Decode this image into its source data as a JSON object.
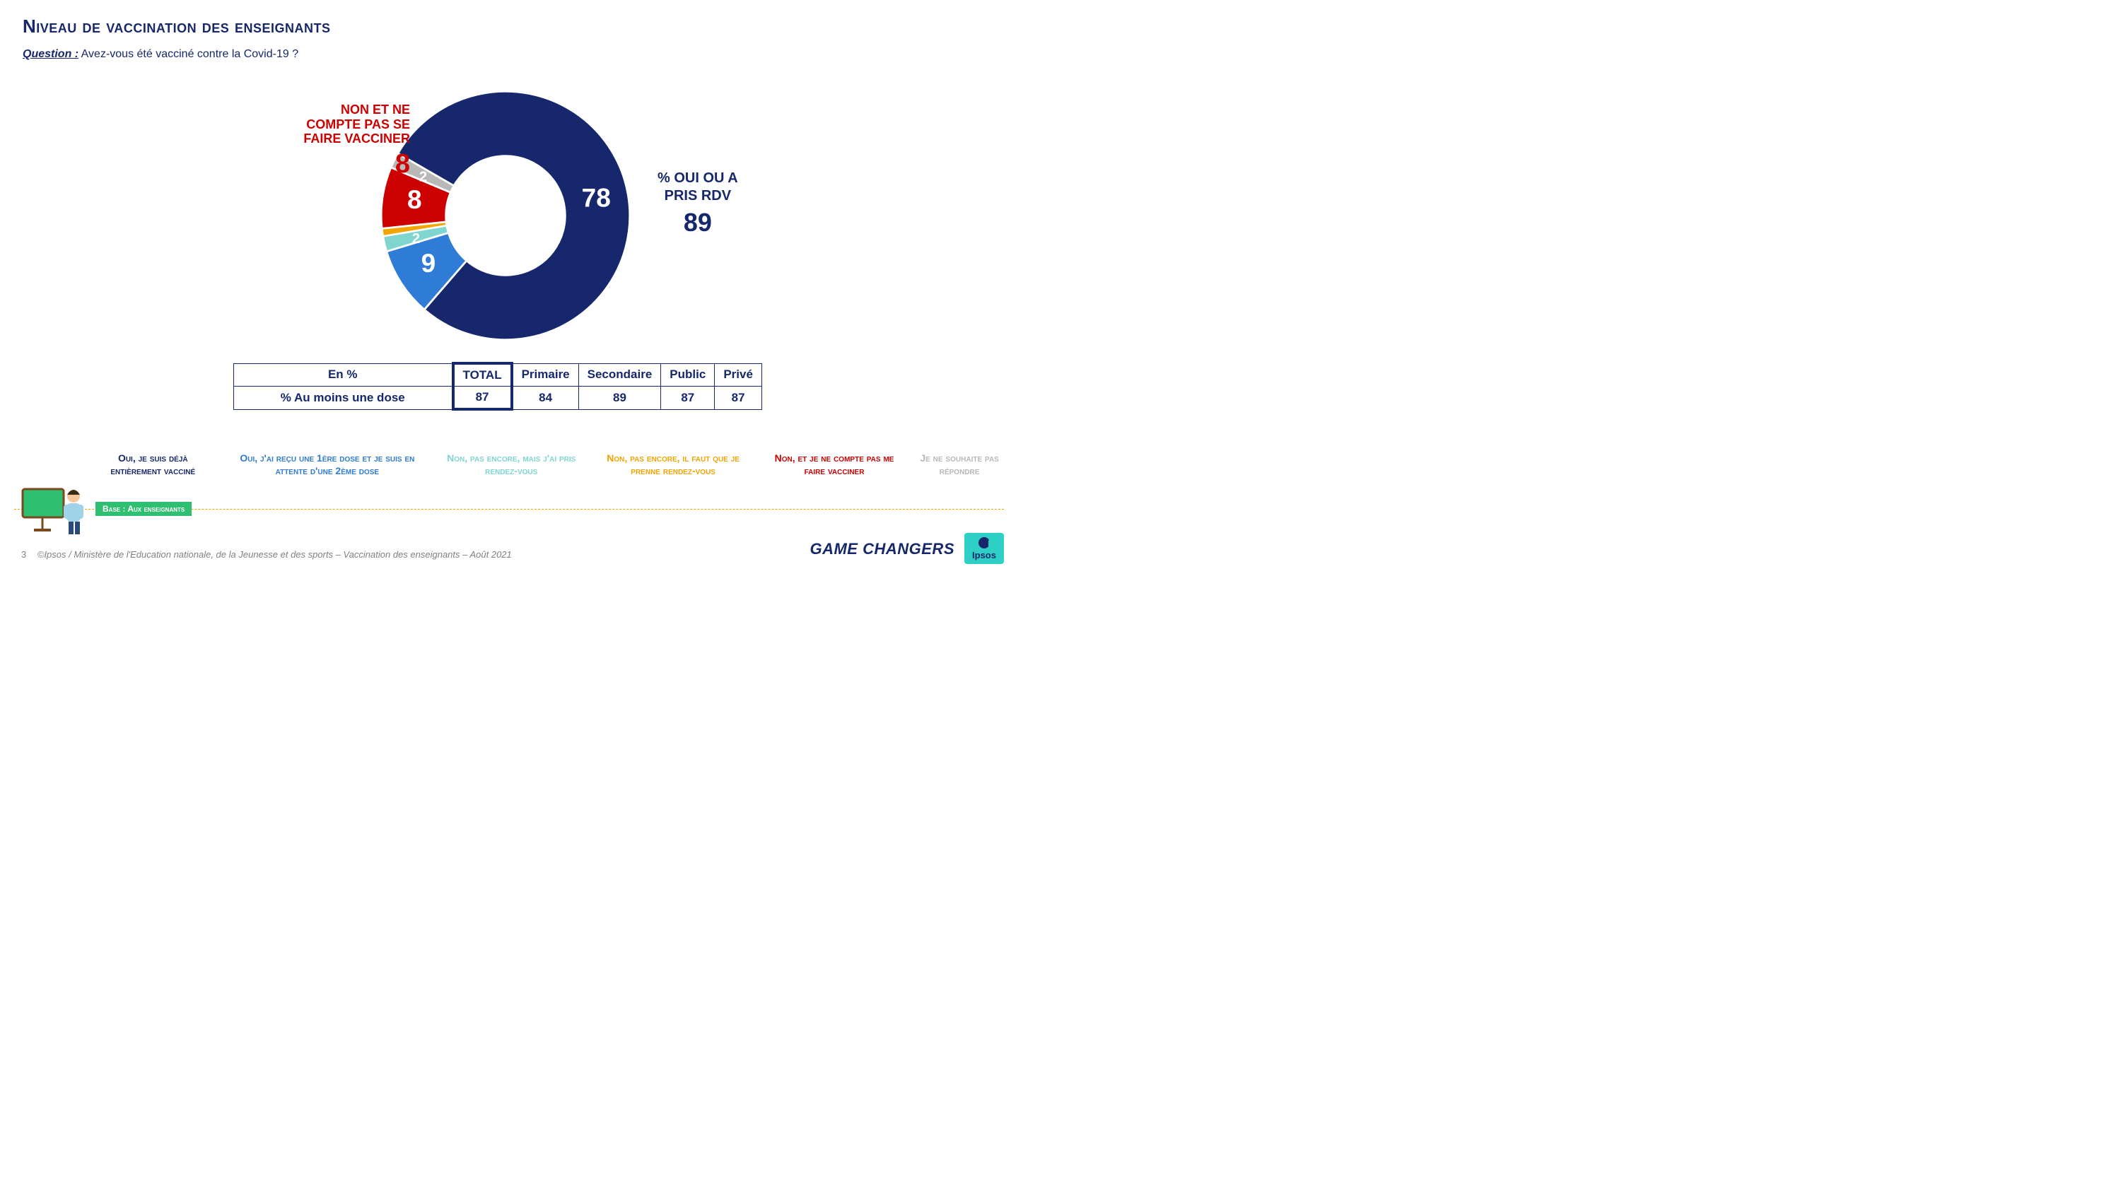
{
  "colors": {
    "navy": "#16286b",
    "blue": "#2e7cd6",
    "teal": "#7ed6cf",
    "orange": "#f2a400",
    "red": "#cc0000",
    "grey": "#b8b8b8",
    "green": "#2fbf71",
    "text_grey": "#808080",
    "white": "#ffffff"
  },
  "title": "Niveau de vaccination des enseignants",
  "question": {
    "label": "Question :",
    "text": " Avez-vous été vacciné contre la Covid-19 ?"
  },
  "donut": {
    "type": "donut",
    "inner_radius_pct": 48,
    "start_angle_deg": 210,
    "segments": [
      {
        "key": "fully",
        "value": 78,
        "color": "#16286b",
        "show_label": true
      },
      {
        "key": "first",
        "value": 9,
        "color": "#2e7cd6",
        "show_label": true
      },
      {
        "key": "rdvyes",
        "value": 2,
        "color": "#7ed6cf",
        "show_label": true
      },
      {
        "key": "rdvneed",
        "value": 1,
        "color": "#f2a400",
        "show_label": false
      },
      {
        "key": "no",
        "value": 8,
        "color": "#cc0000",
        "show_label": true
      },
      {
        "key": "na",
        "value": 2,
        "color": "#b8b8b8",
        "show_label": true
      }
    ]
  },
  "callouts": {
    "right": {
      "lines": [
        "% OUI OU A",
        "PRIS RDV"
      ],
      "value": "89"
    },
    "left": {
      "lines": [
        "NON ET NE",
        "COMPTE PAS SE",
        "FAIRE VACCINER"
      ],
      "value": "8"
    }
  },
  "table": {
    "header": [
      "En %",
      "TOTAL",
      "Primaire",
      "Secondaire",
      "Public",
      "Privé"
    ],
    "row_label": "% Au moins une dose",
    "row_values": [
      "87",
      "84",
      "89",
      "87",
      "87"
    ]
  },
  "legend": [
    {
      "text": "Oui, je suis déjà entièrement vacciné",
      "color": "#16286b"
    },
    {
      "text": "Oui, j'ai reçu une 1ère dose et je suis en attente d'une 2ème dose",
      "color": "#2e7cd6"
    },
    {
      "text": "Non, pas encore, mais j'ai pris rendez-vous",
      "color": "#7ed6cf"
    },
    {
      "text": "Non, pas encore, il faut que je prenne rendez-vous",
      "color": "#f2a400"
    },
    {
      "text": "Non, et je ne compte pas me faire vacciner",
      "color": "#cc0000"
    },
    {
      "text": "Je ne souhaite pas répondre",
      "color": "#b8b8b8"
    }
  ],
  "base_tag": "Base : Aux enseignants",
  "footer": {
    "page": "3",
    "text": "©Ipsos / Ministère de l'Education nationale, de la Jeunesse et des sports – Vaccination des enseignants – Août 2021"
  },
  "brand": {
    "game_changers": "GAME CHANGERS",
    "ipsos": "Ipsos"
  }
}
